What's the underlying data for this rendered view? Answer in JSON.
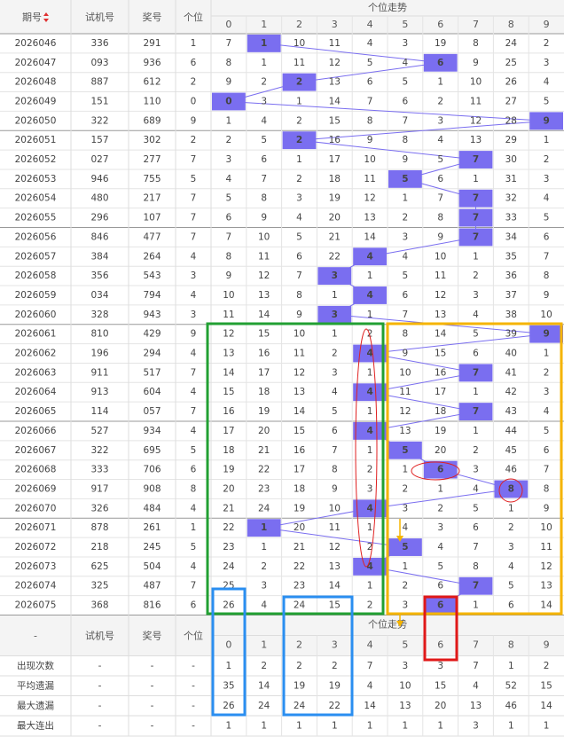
{
  "header": {
    "period": "期号",
    "trial": "试机号",
    "prize": "奖号",
    "unit": "个位",
    "trend": "个位走势",
    "digits": [
      0,
      1,
      2,
      3,
      4,
      5,
      6,
      7,
      8,
      9
    ]
  },
  "table": {
    "rows": [
      {
        "period": "2026046",
        "trial": "336",
        "prize": "291",
        "unit": 1,
        "trend": [
          7,
          1,
          10,
          11,
          4,
          3,
          19,
          8,
          24,
          2
        ]
      },
      {
        "period": "2026047",
        "trial": "093",
        "prize": "936",
        "unit": 6,
        "trend": [
          8,
          1,
          11,
          12,
          5,
          4,
          6,
          9,
          25,
          3
        ]
      },
      {
        "period": "2026048",
        "trial": "887",
        "prize": "612",
        "unit": 2,
        "trend": [
          9,
          2,
          2,
          13,
          6,
          5,
          1,
          10,
          26,
          4
        ]
      },
      {
        "period": "2026049",
        "trial": "151",
        "prize": "110",
        "unit": 0,
        "trend": [
          0,
          3,
          1,
          14,
          7,
          6,
          2,
          11,
          27,
          5
        ]
      },
      {
        "period": "2026050",
        "trial": "322",
        "prize": "689",
        "unit": 9,
        "trend": [
          1,
          4,
          2,
          15,
          8,
          7,
          3,
          12,
          28,
          9
        ]
      },
      {
        "period": "2026051",
        "trial": "157",
        "prize": "302",
        "unit": 2,
        "trend": [
          2,
          5,
          2,
          16,
          9,
          8,
          4,
          13,
          29,
          1
        ]
      },
      {
        "period": "2026052",
        "trial": "027",
        "prize": "277",
        "unit": 7,
        "trend": [
          3,
          6,
          1,
          17,
          10,
          9,
          5,
          7,
          30,
          2
        ]
      },
      {
        "period": "2026053",
        "trial": "946",
        "prize": "755",
        "unit": 5,
        "trend": [
          4,
          7,
          2,
          18,
          11,
          5,
          6,
          1,
          31,
          3
        ]
      },
      {
        "period": "2026054",
        "trial": "480",
        "prize": "217",
        "unit": 7,
        "trend": [
          5,
          8,
          3,
          19,
          12,
          1,
          7,
          7,
          32,
          4
        ]
      },
      {
        "period": "2026055",
        "trial": "296",
        "prize": "107",
        "unit": 7,
        "trend": [
          6,
          9,
          4,
          20,
          13,
          2,
          8,
          7,
          33,
          5
        ]
      },
      {
        "period": "2026056",
        "trial": "846",
        "prize": "477",
        "unit": 7,
        "trend": [
          7,
          10,
          5,
          21,
          14,
          3,
          9,
          7,
          34,
          6
        ]
      },
      {
        "period": "2026057",
        "trial": "384",
        "prize": "264",
        "unit": 4,
        "trend": [
          8,
          11,
          6,
          22,
          4,
          4,
          10,
          1,
          35,
          7
        ]
      },
      {
        "period": "2026058",
        "trial": "356",
        "prize": "543",
        "unit": 3,
        "trend": [
          9,
          12,
          7,
          3,
          1,
          5,
          11,
          2,
          36,
          8
        ]
      },
      {
        "period": "2026059",
        "trial": "034",
        "prize": "794",
        "unit": 4,
        "trend": [
          10,
          13,
          8,
          1,
          4,
          6,
          12,
          3,
          37,
          9
        ]
      },
      {
        "period": "2026060",
        "trial": "328",
        "prize": "943",
        "unit": 3,
        "trend": [
          11,
          14,
          9,
          3,
          1,
          7,
          13,
          4,
          38,
          10
        ]
      },
      {
        "period": "2026061",
        "trial": "810",
        "prize": "429",
        "unit": 9,
        "trend": [
          12,
          15,
          10,
          1,
          2,
          8,
          14,
          5,
          39,
          9
        ]
      },
      {
        "period": "2026062",
        "trial": "196",
        "prize": "294",
        "unit": 4,
        "trend": [
          13,
          16,
          11,
          2,
          4,
          9,
          15,
          6,
          40,
          1
        ]
      },
      {
        "period": "2026063",
        "trial": "911",
        "prize": "517",
        "unit": 7,
        "trend": [
          14,
          17,
          12,
          3,
          1,
          10,
          16,
          7,
          41,
          2
        ]
      },
      {
        "period": "2026064",
        "trial": "913",
        "prize": "604",
        "unit": 4,
        "trend": [
          15,
          18,
          13,
          4,
          4,
          11,
          17,
          1,
          42,
          3
        ]
      },
      {
        "period": "2026065",
        "trial": "114",
        "prize": "057",
        "unit": 7,
        "trend": [
          16,
          19,
          14,
          5,
          1,
          12,
          18,
          7,
          43,
          4
        ]
      },
      {
        "period": "2026066",
        "trial": "527",
        "prize": "934",
        "unit": 4,
        "trend": [
          17,
          20,
          15,
          6,
          4,
          13,
          19,
          1,
          44,
          5
        ]
      },
      {
        "period": "2026067",
        "trial": "322",
        "prize": "695",
        "unit": 5,
        "trend": [
          18,
          21,
          16,
          7,
          1,
          5,
          20,
          2,
          45,
          6
        ]
      },
      {
        "period": "2026068",
        "trial": "333",
        "prize": "706",
        "unit": 6,
        "trend": [
          19,
          22,
          17,
          8,
          2,
          1,
          6,
          3,
          46,
          7
        ]
      },
      {
        "period": "2026069",
        "trial": "917",
        "prize": "908",
        "unit": 8,
        "trend": [
          20,
          23,
          18,
          9,
          3,
          2,
          1,
          4,
          8,
          8
        ]
      },
      {
        "period": "2026070",
        "trial": "326",
        "prize": "484",
        "unit": 4,
        "trend": [
          21,
          24,
          19,
          10,
          4,
          3,
          2,
          5,
          1,
          9
        ]
      },
      {
        "period": "2026071",
        "trial": "878",
        "prize": "261",
        "unit": 1,
        "trend": [
          22,
          1,
          20,
          11,
          1,
          4,
          3,
          6,
          2,
          10
        ]
      },
      {
        "period": "2026072",
        "trial": "218",
        "prize": "245",
        "unit": 5,
        "trend": [
          23,
          1,
          21,
          12,
          2,
          5,
          4,
          7,
          3,
          11
        ]
      },
      {
        "period": "2026073",
        "trial": "625",
        "prize": "504",
        "unit": 4,
        "trend": [
          24,
          2,
          22,
          13,
          4,
          1,
          5,
          8,
          4,
          12
        ]
      },
      {
        "period": "2026074",
        "trial": "325",
        "prize": "487",
        "unit": 7,
        "trend": [
          25,
          3,
          23,
          14,
          1,
          2,
          6,
          7,
          5,
          13
        ]
      },
      {
        "period": "2026075",
        "trial": "368",
        "prize": "816",
        "unit": 6,
        "trend": [
          26,
          4,
          24,
          15,
          2,
          3,
          6,
          1,
          6,
          14
        ]
      }
    ]
  },
  "footer": {
    "header": {
      "period": "-",
      "trial": "试机号",
      "prize": "奖号",
      "unit": "个位",
      "trend": "个位走势"
    },
    "stats": [
      {
        "label": "出现次数",
        "trial": "-",
        "prize": "-",
        "unit": "-",
        "values": [
          1,
          2,
          2,
          2,
          7,
          3,
          3,
          7,
          1,
          2
        ]
      },
      {
        "label": "平均遗漏",
        "trial": "-",
        "prize": "-",
        "unit": "-",
        "values": [
          35,
          14,
          19,
          19,
          4,
          10,
          15,
          4,
          52,
          15
        ]
      },
      {
        "label": "最大遗漏",
        "trial": "-",
        "prize": "-",
        "unit": "-",
        "values": [
          26,
          24,
          24,
          22,
          14,
          13,
          20,
          13,
          46,
          14
        ]
      },
      {
        "label": "最大连出",
        "trial": "-",
        "prize": "-",
        "unit": "-",
        "values": [
          1,
          1,
          1,
          1,
          1,
          1,
          1,
          3,
          1,
          1
        ]
      }
    ]
  }
}
